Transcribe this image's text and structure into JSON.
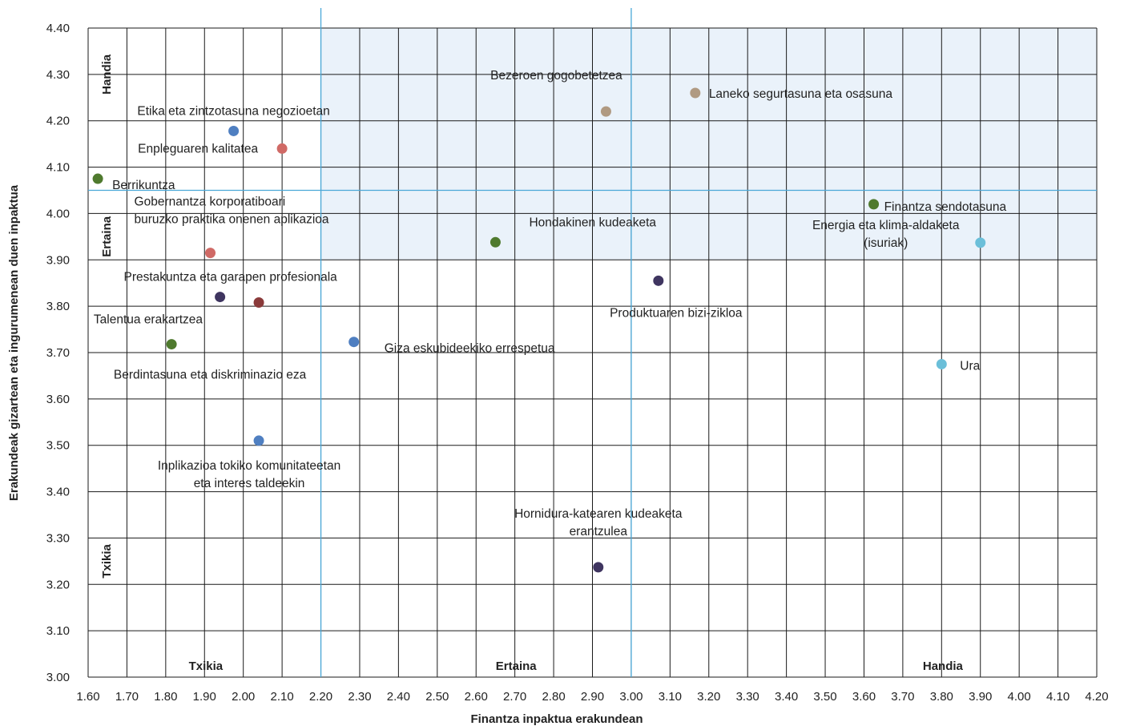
{
  "chart_data": {
    "type": "scatter",
    "title": "",
    "xlabel": "Finantza inpaktua erakundean",
    "ylabel": "Erakundeak gizartean eta ingurumenean duen inpaktua",
    "xlim": [
      1.6,
      4.2
    ],
    "ylim": [
      3.0,
      4.4
    ],
    "x_ticks": [
      "1.60",
      "1.70",
      "1.80",
      "1.90",
      "2.00",
      "2.10",
      "2.20",
      "2.30",
      "2.40",
      "2.50",
      "2.60",
      "2.70",
      "2.80",
      "2.90",
      "3.00",
      "3.10",
      "3.20",
      "3.30",
      "3.40",
      "3.50",
      "3.60",
      "3.70",
      "3.80",
      "3.90",
      "4.00",
      "4.10",
      "4.20"
    ],
    "y_ticks": [
      "3.00",
      "3.10",
      "3.20",
      "3.30",
      "3.40",
      "3.50",
      "3.60",
      "3.70",
      "3.80",
      "3.90",
      "4.00",
      "4.10",
      "4.20",
      "4.30",
      "4.40"
    ],
    "grid": true,
    "highlight_region": {
      "x_from": 2.2,
      "y_from": 3.9,
      "color": "#eaf2fa"
    },
    "x_zone_labels": [
      {
        "text": "Txikia",
        "x": 1.8
      },
      {
        "text": "Ertaina",
        "x": 2.6
      },
      {
        "text": "Handia",
        "x": 3.7
      }
    ],
    "y_zone_labels": [
      {
        "text": "Handia",
        "y": 4.3
      },
      {
        "text": "Ertaina",
        "y": 3.95
      },
      {
        "text": "Txikia",
        "y": 3.25
      }
    ],
    "reference_lines": {
      "vertical": [
        2.2,
        3.0
      ],
      "horizontal": [
        4.05
      ],
      "color": "#4aa8d8"
    },
    "points": [
      {
        "label": "Etika eta zintzotasuna negozioetan",
        "x": 1.975,
        "y": 4.178,
        "color": "#4f7fc1"
      },
      {
        "label": "Enpleguaren kalitatea",
        "x": 2.1,
        "y": 4.14,
        "color": "#d06a66"
      },
      {
        "label": "Berrikuntza",
        "x": 1.625,
        "y": 4.075,
        "color": "#4f7a2e"
      },
      {
        "label": "Gobernantza korporatiboari\nburuzko praktika onenen aplikazioa",
        "x": 1.915,
        "y": 3.915,
        "color": "#d06a66"
      },
      {
        "label": "Prestakuntza eta garapen profesionala",
        "x": 1.94,
        "y": 3.82,
        "color": "#3f3560"
      },
      {
        "label": "Talentua erakartzea",
        "x": 2.04,
        "y": 3.808,
        "color": "#8a3a3a"
      },
      {
        "label": "Berdintasuna eta diskriminazio eza",
        "x": 1.815,
        "y": 3.718,
        "color": "#4f7a2e"
      },
      {
        "label": "Giza eskubideekiko errespetua",
        "x": 2.285,
        "y": 3.723,
        "color": "#4f7fc1"
      },
      {
        "label": "Inplikazioa tokiko komunitateetan\neta interes taldeekin",
        "x": 2.04,
        "y": 3.51,
        "color": "#4f7fc1"
      },
      {
        "label": "Bezeroen gogobetetzea",
        "x": 2.935,
        "y": 4.22,
        "color": "#b09a82"
      },
      {
        "label": "Laneko segurtasuna eta osasuna",
        "x": 3.165,
        "y": 4.26,
        "color": "#b09a82"
      },
      {
        "label": "Hondakinen kudeaketa",
        "x": 2.65,
        "y": 3.938,
        "color": "#4f7a2e"
      },
      {
        "label": "Produktuaren bizi-zikloa",
        "x": 3.07,
        "y": 3.855,
        "color": "#3f3560"
      },
      {
        "label": "Hornidura-katearen kudeaketa\nerantzulea",
        "x": 2.915,
        "y": 3.237,
        "color": "#3f3560"
      },
      {
        "label": "Finantza sendotasuna",
        "x": 3.625,
        "y": 4.02,
        "color": "#4f7a2e"
      },
      {
        "label": "Energia eta klima-aldaketa\n(isuriak)",
        "x": 3.9,
        "y": 3.937,
        "color": "#6bbfd9"
      },
      {
        "label": "Ura",
        "x": 3.8,
        "y": 3.675,
        "color": "#6bbfd9"
      }
    ]
  }
}
